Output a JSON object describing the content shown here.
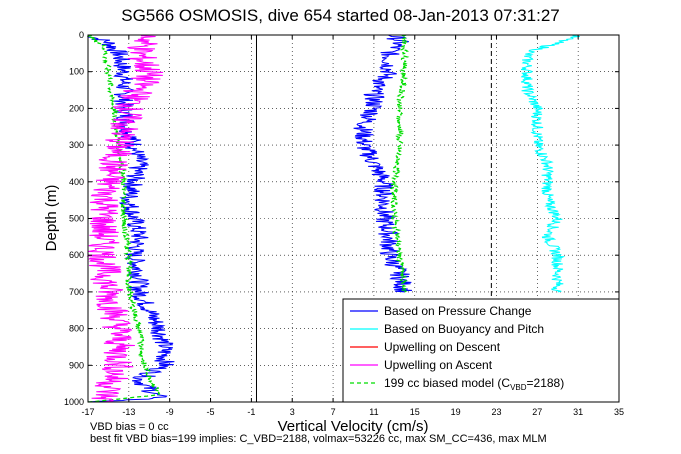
{
  "title": "SG566 OSMOSIS, dive 654 started 08-Jan-2013 07:31:27",
  "footer": {
    "line1": "VBD bias = 0 cc",
    "line2": "best fit VBD bias=199 implies: C_VBD=2188, volmax=53226 cc, max SM_CC=436, max MLM"
  },
  "chart_data": {
    "type": "line",
    "xlabel": "Vertical Velocity (cm/s)",
    "ylabel": "Depth (m)",
    "xlim": [
      -17,
      35
    ],
    "ylim": [
      1000,
      0
    ],
    "xticks": [
      -17,
      -13,
      -9,
      -5,
      -1,
      3,
      7,
      11,
      15,
      19,
      23,
      27,
      31,
      35
    ],
    "yticks": [
      0,
      100,
      200,
      300,
      400,
      500,
      600,
      700,
      800,
      900,
      1000
    ],
    "grid": true,
    "reference_lines": [
      {
        "x": -0.5,
        "style": "solid",
        "color": "#000000"
      },
      {
        "x": 22.5,
        "style": "dashed",
        "color": "#000000"
      }
    ],
    "legend_position": "bottom-right",
    "series": [
      {
        "name": "Based on Pressure Change",
        "color": "#0000ff",
        "style": "solid",
        "noise": 1.0,
        "points": [
          [
            -17,
            0
          ],
          [
            -15,
            20
          ],
          [
            -14,
            50
          ],
          [
            -13.5,
            100
          ],
          [
            -13.5,
            200
          ],
          [
            -13,
            260
          ],
          [
            -12.5,
            300
          ],
          [
            -12,
            350
          ],
          [
            -12.5,
            400
          ],
          [
            -13,
            450
          ],
          [
            -12.5,
            500
          ],
          [
            -12,
            550
          ],
          [
            -12.5,
            600
          ],
          [
            -12,
            650
          ],
          [
            -12,
            700
          ],
          [
            -11,
            750
          ],
          [
            -10,
            800
          ],
          [
            -9.5,
            850
          ],
          [
            -9.5,
            900
          ],
          [
            -12,
            940
          ],
          [
            -10,
            990
          ],
          [
            -17,
            1000
          ]
        ]
      },
      {
        "name": "Based on Pressure Change",
        "color": "#0000ff",
        "style": "solid",
        "noise": 1.0,
        "points": [
          [
            13,
            0
          ],
          [
            13.5,
            20
          ],
          [
            12.5,
            50
          ],
          [
            12.5,
            100
          ],
          [
            11,
            150
          ],
          [
            11,
            200
          ],
          [
            10,
            250
          ],
          [
            10,
            300
          ],
          [
            11,
            350
          ],
          [
            12,
            400
          ],
          [
            12,
            450
          ],
          [
            12,
            500
          ],
          [
            12.5,
            550
          ],
          [
            12.5,
            600
          ],
          [
            13.5,
            650
          ],
          [
            14,
            700
          ]
        ]
      },
      {
        "name": "Based on Buoyancy and Pitch",
        "color": "#00ffff",
        "style": "solid",
        "noise": 0.6,
        "points": [
          [
            31,
            0
          ],
          [
            26,
            50
          ],
          [
            26,
            100
          ],
          [
            26,
            150
          ],
          [
            27,
            200
          ],
          [
            27,
            250
          ],
          [
            27,
            300
          ],
          [
            28,
            350
          ],
          [
            28,
            400
          ],
          [
            28,
            450
          ],
          [
            29,
            500
          ],
          [
            28,
            550
          ],
          [
            29,
            600
          ],
          [
            29,
            650
          ],
          [
            29,
            700
          ]
        ]
      },
      {
        "name": "199 cc biased model (C_VBD=2188)",
        "color": "#00dd00",
        "style": "dashed",
        "noise": 0.3,
        "points": [
          [
            -17,
            0
          ],
          [
            -15.5,
            30
          ],
          [
            -15,
            100
          ],
          [
            -14.5,
            200
          ],
          [
            -14,
            300
          ],
          [
            -13.5,
            400
          ],
          [
            -13.5,
            500
          ],
          [
            -13,
            600
          ],
          [
            -13,
            700
          ],
          [
            -12,
            800
          ],
          [
            -11.5,
            900
          ],
          [
            -10,
            980
          ],
          [
            -17,
            1000
          ]
        ]
      },
      {
        "name": "199 cc biased model (C_VBD=2188)",
        "color": "#00dd00",
        "style": "dashed",
        "noise": 0.3,
        "points": [
          [
            14,
            0
          ],
          [
            14,
            100
          ],
          [
            13.5,
            200
          ],
          [
            13.5,
            300
          ],
          [
            13,
            400
          ],
          [
            13,
            500
          ],
          [
            13.5,
            600
          ],
          [
            14,
            700
          ]
        ]
      },
      {
        "name": "Upwelling on Ascent",
        "color": "#ff00ff",
        "style": "solid",
        "noise": 1.6,
        "points": [
          [
            -11,
            0
          ],
          [
            -12,
            50
          ],
          [
            -11,
            100
          ],
          [
            -13,
            200
          ],
          [
            -14,
            300
          ],
          [
            -15,
            400
          ],
          [
            -15.5,
            500
          ],
          [
            -15.5,
            600
          ],
          [
            -15,
            700
          ],
          [
            -14,
            800
          ],
          [
            -14,
            900
          ],
          [
            -15.5,
            1000
          ]
        ]
      }
    ],
    "legend": [
      {
        "label": "Based on Pressure Change",
        "color": "#0000ff",
        "style": "solid"
      },
      {
        "label": "Based on Buoyancy and Pitch",
        "color": "#00ffff",
        "style": "solid"
      },
      {
        "label": "Upwelling on Descent",
        "color": "#ff0000",
        "style": "solid"
      },
      {
        "label": "Upwelling on Ascent",
        "color": "#ff00ff",
        "style": "solid"
      },
      {
        "label": "199 cc biased model (C",
        "sub": "VBD",
        "suffix": "=2188)",
        "color": "#00dd00",
        "style": "dashed"
      }
    ]
  }
}
